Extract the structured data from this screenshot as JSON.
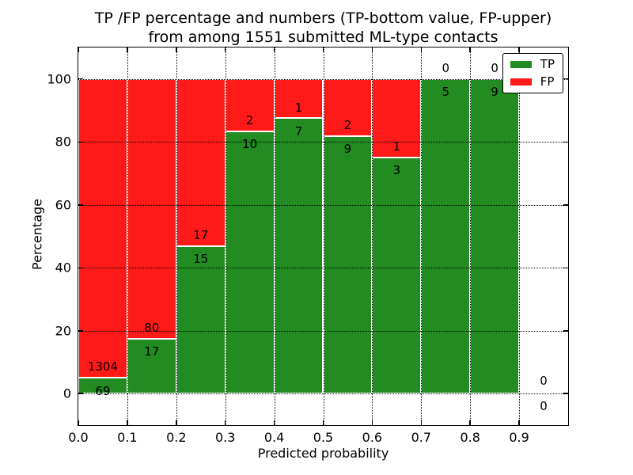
{
  "title": {
    "line1": "TP /FP percentage and numbers (TP-bottom value, FP-upper)",
    "line2": "from among 1551 submitted ML-type contacts"
  },
  "chart_data": {
    "type": "bar",
    "subtype": "stacked-percentage-histogram",
    "title": "TP /FP percentage and numbers (TP-bottom value, FP-upper) from among 1551 submitted ML-type contacts",
    "xlabel": "Predicted probability",
    "ylabel": "Percentage",
    "total_contacts": 1551,
    "xlim": [
      0.0,
      1.0
    ],
    "ylim": [
      -10,
      110
    ],
    "xticks": [
      {
        "value": 0.0,
        "label": "0.0"
      },
      {
        "value": 0.1,
        "label": "0.1"
      },
      {
        "value": 0.2,
        "label": "0.2"
      },
      {
        "value": 0.3,
        "label": "0.3"
      },
      {
        "value": 0.4,
        "label": "0.4"
      },
      {
        "value": 0.5,
        "label": "0.5"
      },
      {
        "value": 0.6,
        "label": "0.6"
      },
      {
        "value": 0.7,
        "label": "0.7"
      },
      {
        "value": 0.8,
        "label": "0.8"
      },
      {
        "value": 0.9,
        "label": "0.9"
      }
    ],
    "yticks": [
      {
        "value": 0,
        "label": "0"
      },
      {
        "value": 20,
        "label": "20"
      },
      {
        "value": 40,
        "label": "40"
      },
      {
        "value": 60,
        "label": "60"
      },
      {
        "value": 80,
        "label": "80"
      },
      {
        "value": 100,
        "label": "100"
      }
    ],
    "grid": "dotted-black-both-axes",
    "legend": {
      "position": "upper-right",
      "entries": [
        {
          "label": "TP",
          "color": "#228b22"
        },
        {
          "label": "FP",
          "color": "#ff1a1a"
        }
      ]
    },
    "colors": {
      "tp": "#228b22",
      "fp": "#ff1a1a",
      "bar_edge": "#ffffff",
      "grid": "#000000",
      "frame": "#000000",
      "background": "#ffffff"
    },
    "bins": [
      {
        "x0": 0.0,
        "x1": 0.1,
        "tp_count": 69,
        "fp_count": 1304,
        "tp_pct": 5.0,
        "fp_pct": 95.0
      },
      {
        "x0": 0.1,
        "x1": 0.2,
        "tp_count": 17,
        "fp_count": 80,
        "tp_pct": 17.5,
        "fp_pct": 82.5
      },
      {
        "x0": 0.2,
        "x1": 0.3,
        "tp_count": 15,
        "fp_count": 17,
        "tp_pct": 46.9,
        "fp_pct": 53.1
      },
      {
        "x0": 0.3,
        "x1": 0.4,
        "tp_count": 10,
        "fp_count": 2,
        "tp_pct": 83.3,
        "fp_pct": 16.7
      },
      {
        "x0": 0.4,
        "x1": 0.5,
        "tp_count": 7,
        "fp_count": 1,
        "tp_pct": 87.5,
        "fp_pct": 12.5
      },
      {
        "x0": 0.5,
        "x1": 0.6,
        "tp_count": 9,
        "fp_count": 2,
        "tp_pct": 81.8,
        "fp_pct": 18.2
      },
      {
        "x0": 0.6,
        "x1": 0.7,
        "tp_count": 3,
        "fp_count": 1,
        "tp_pct": 75.0,
        "fp_pct": 25.0
      },
      {
        "x0": 0.7,
        "x1": 0.8,
        "tp_count": 5,
        "fp_count": 0,
        "tp_pct": 100.0,
        "fp_pct": 0.0
      },
      {
        "x0": 0.8,
        "x1": 0.9,
        "tp_count": 9,
        "fp_count": 0,
        "tp_pct": 100.0,
        "fp_pct": 0.0
      },
      {
        "x0": 0.9,
        "x1": 1.0,
        "tp_count": 0,
        "fp_count": 0,
        "tp_pct": 0.0,
        "fp_pct": 0.0
      }
    ]
  }
}
